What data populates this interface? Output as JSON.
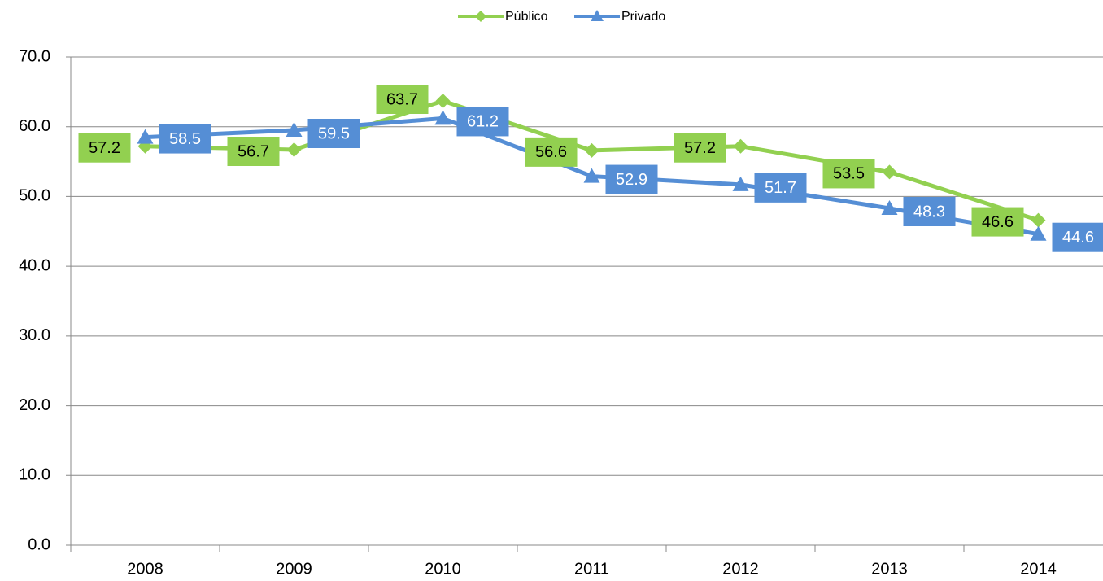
{
  "chart_data": {
    "type": "line",
    "categories": [
      "2008",
      "2009",
      "2010",
      "2011",
      "2012",
      "2013",
      "2014"
    ],
    "series": [
      {
        "name": "Público",
        "color": "#92d050",
        "values": [
          57.2,
          56.7,
          63.7,
          56.6,
          57.2,
          53.5,
          46.6
        ]
      },
      {
        "name": "Privado",
        "color": "#558ed5",
        "values": [
          58.5,
          59.5,
          61.2,
          52.9,
          51.7,
          48.3,
          44.6
        ]
      }
    ],
    "ylim": [
      0,
      70
    ],
    "yticks": [
      {
        "value": 0,
        "label": "0.0"
      },
      {
        "value": 10,
        "label": "10.0"
      },
      {
        "value": 20,
        "label": "20.0"
      },
      {
        "value": 30,
        "label": "30.0"
      },
      {
        "value": 40,
        "label": "40.0"
      },
      {
        "value": 50,
        "label": "50.0"
      },
      {
        "value": 60,
        "label": "60.0"
      },
      {
        "value": 70,
        "label": "70.0"
      }
    ],
    "grid": true,
    "legend": "top"
  }
}
